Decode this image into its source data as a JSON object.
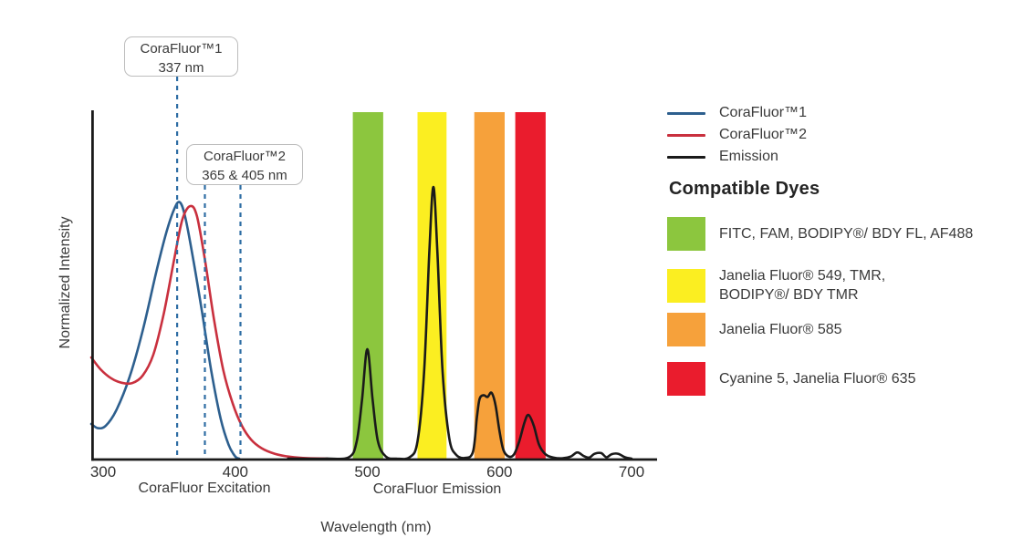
{
  "figure": {
    "y_axis_label": "Normalized Intensity",
    "x_axis_label": "Wavelength (nm)",
    "excitation_section_label": "CoraFluor Excitation",
    "emission_section_label": "CoraFluor Emission"
  },
  "annotations": [
    {
      "title": "CoraFluor™1",
      "value": "337 nm",
      "marker_nm": [
        356
      ]
    },
    {
      "title": "CoraFluor™2",
      "value": "365 & 405 nm",
      "marker_nm": [
        377,
        404
      ]
    }
  ],
  "legend": {
    "items": [
      {
        "label": "CoraFluor™1",
        "color": "#2D5F8E"
      },
      {
        "label": "CoraFluor™2",
        "color": "#C9303E"
      },
      {
        "label": "Emission",
        "color": "#1A1A1A"
      }
    ],
    "dyes_heading": "Compatible Dyes",
    "dyes": [
      {
        "name": "green",
        "color": "#8CC63E",
        "label": "FITC, FAM, BODIPY®/ BDY FL, AF488"
      },
      {
        "name": "yellow",
        "color": "#FBEE21",
        "label": "Janelia Fluor® 549, TMR,\nBODIPY®/ BDY TMR"
      },
      {
        "name": "orange",
        "color": "#F6A13B",
        "label": "Janelia Fluor® 585"
      },
      {
        "name": "red",
        "color": "#EA1C2D",
        "label": "Cyanine 5, Janelia Fluor® 635"
      }
    ]
  },
  "chart_data": {
    "type": "line",
    "title": "",
    "xlabel": "Wavelength (nm)",
    "ylabel": "Normalized Intensity",
    "xlim": [
      291,
      719
    ],
    "ylim": [
      0,
      1
    ],
    "xticks": [
      300,
      400,
      500,
      600,
      700
    ],
    "grid": false,
    "legend_position": "right",
    "marker_color": "#2E6DA4",
    "bands": [
      {
        "name": "green-filter",
        "nm": [
          489,
          512
        ],
        "color": "#8CC63E"
      },
      {
        "name": "yellow-filter",
        "nm": [
          538,
          560
        ],
        "color": "#FBEE21"
      },
      {
        "name": "orange-filter",
        "nm": [
          581,
          604
        ],
        "color": "#F6A13B"
      },
      {
        "name": "red-filter",
        "nm": [
          612,
          635
        ],
        "color": "#EA1C2D"
      }
    ],
    "series": [
      {
        "name": "CoraFluor™1",
        "role": "excitation",
        "color": "#2D5F8E",
        "points": [
          [
            291,
            0.1
          ],
          [
            296,
            0.088
          ],
          [
            302,
            0.095
          ],
          [
            310,
            0.14
          ],
          [
            320,
            0.235
          ],
          [
            330,
            0.37
          ],
          [
            340,
            0.535
          ],
          [
            348,
            0.655
          ],
          [
            354,
            0.722
          ],
          [
            358,
            0.74
          ],
          [
            362,
            0.7
          ],
          [
            368,
            0.58
          ],
          [
            375,
            0.42
          ],
          [
            382,
            0.25
          ],
          [
            389,
            0.115
          ],
          [
            395,
            0.04
          ],
          [
            400,
            0.006
          ],
          [
            403,
            0.0
          ]
        ]
      },
      {
        "name": "CoraFluor™2",
        "role": "excitation",
        "color": "#C9303E",
        "points": [
          [
            291,
            0.292
          ],
          [
            298,
            0.258
          ],
          [
            306,
            0.232
          ],
          [
            314,
            0.219
          ],
          [
            322,
            0.218
          ],
          [
            330,
            0.24
          ],
          [
            338,
            0.3
          ],
          [
            346,
            0.42
          ],
          [
            354,
            0.58
          ],
          [
            360,
            0.69
          ],
          [
            366,
            0.729
          ],
          [
            371,
            0.7
          ],
          [
            377,
            0.575
          ],
          [
            384,
            0.4
          ],
          [
            391,
            0.255
          ],
          [
            398,
            0.16
          ],
          [
            405,
            0.095
          ],
          [
            412,
            0.055
          ],
          [
            420,
            0.03
          ],
          [
            430,
            0.014
          ],
          [
            442,
            0.005
          ],
          [
            455,
            0.001
          ],
          [
            470,
            0.0
          ]
        ]
      },
      {
        "name": "Emission",
        "role": "emission",
        "color": "#1A1A1A",
        "points": [
          [
            440,
            0.0
          ],
          [
            468,
            0.0
          ],
          [
            486,
            0.004
          ],
          [
            492,
            0.05
          ],
          [
            496,
            0.17
          ],
          [
            500,
            0.316
          ],
          [
            504,
            0.17
          ],
          [
            508,
            0.05
          ],
          [
            514,
            0.006
          ],
          [
            522,
            0.0
          ],
          [
            532,
            0.004
          ],
          [
            538,
            0.05
          ],
          [
            543,
            0.25
          ],
          [
            547,
            0.6
          ],
          [
            550,
            0.784
          ],
          [
            553,
            0.6
          ],
          [
            557,
            0.25
          ],
          [
            562,
            0.06
          ],
          [
            567,
            0.012
          ],
          [
            574,
            0.002
          ],
          [
            580,
            0.02
          ],
          [
            583,
            0.12
          ],
          [
            585,
            0.172
          ],
          [
            588,
            0.183
          ],
          [
            591,
            0.178
          ],
          [
            594,
            0.19
          ],
          [
            597,
            0.155
          ],
          [
            600,
            0.08
          ],
          [
            603,
            0.025
          ],
          [
            607,
            0.006
          ],
          [
            611,
            0.012
          ],
          [
            615,
            0.05
          ],
          [
            619,
            0.105
          ],
          [
            622,
            0.126
          ],
          [
            626,
            0.095
          ],
          [
            630,
            0.04
          ],
          [
            635,
            0.012
          ],
          [
            641,
            0.003
          ],
          [
            648,
            0.001
          ],
          [
            654,
            0.006
          ],
          [
            659,
            0.018
          ],
          [
            664,
            0.007
          ],
          [
            668,
            0.003
          ],
          [
            672,
            0.014
          ],
          [
            677,
            0.016
          ],
          [
            681,
            0.004
          ],
          [
            685,
            0.013
          ],
          [
            690,
            0.014
          ],
          [
            695,
            0.004
          ],
          [
            700,
            0.0
          ]
        ]
      }
    ]
  }
}
